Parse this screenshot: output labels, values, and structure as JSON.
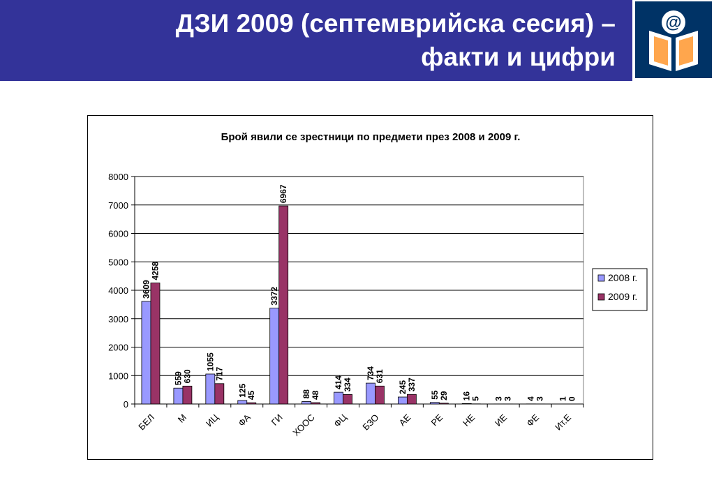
{
  "header": {
    "title_line1": "ДЗИ 2009 (септемврийска сесия) –",
    "title_line2": "факти и цифри"
  },
  "logo": {
    "icon": "book-at-icon",
    "symbol": "@",
    "color": "#003366"
  },
  "chart_data": {
    "type": "bar",
    "title": "Брой явили се зрестници по предмети през 2008 и 2009 г.",
    "xlabel": "",
    "ylabel": "",
    "ylim": [
      0,
      8000
    ],
    "yticks": [
      0,
      1000,
      2000,
      3000,
      4000,
      5000,
      6000,
      7000,
      8000
    ],
    "grid": true,
    "legend_position": "right",
    "categories": [
      "БЕЛ",
      "М",
      "ИЦ",
      "ФА",
      "ГИ",
      "ХООС",
      "ФЦ",
      "БЗО",
      "АЕ",
      "РЕ",
      "НЕ",
      "ИЕ",
      "ФЕ",
      "Ит.Е"
    ],
    "series": [
      {
        "name": "2008 г.",
        "color": "#9999FF",
        "values": [
          3609,
          559,
          1055,
          125,
          3372,
          88,
          414,
          734,
          245,
          55,
          16,
          3,
          4,
          1
        ]
      },
      {
        "name": "2009 г.",
        "color": "#993366",
        "values": [
          4258,
          630,
          717,
          45,
          6967,
          48,
          334,
          631,
          337,
          29,
          5,
          3,
          3,
          0
        ]
      }
    ]
  }
}
